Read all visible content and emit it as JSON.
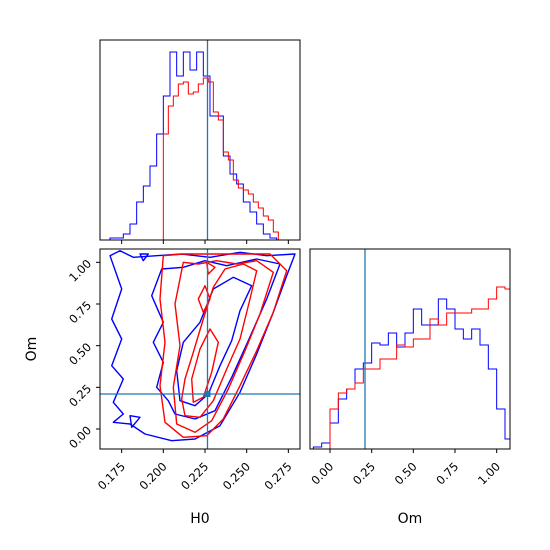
{
  "chart_data": {
    "type": "corner",
    "parameters": [
      "H0",
      "Om"
    ],
    "truths": {
      "H0": 0.2265,
      "Om": 0.21
    },
    "colors": {
      "blue": "#0000ff",
      "red": "#ff0000",
      "truth": "#1f77b4"
    },
    "panels": [
      {
        "id": "hist-H0",
        "type": "histogram",
        "xlim": [
          0.162,
          0.282
        ],
        "xticks": [
          0.175,
          0.2,
          0.225,
          0.25,
          0.275
        ],
        "ylim": [
          0,
          1
        ],
        "series": [
          {
            "color": "blue",
            "bin_start": 0.168,
            "bin_width": 0.004,
            "values": [
              0.01,
              0.01,
              0.03,
              0.08,
              0.19,
              0.27,
              0.37,
              0.53,
              0.72,
              0.94,
              0.82,
              0.94,
              0.85,
              0.94,
              0.82,
              0.62,
              0.62,
              0.42,
              0.33,
              0.28,
              0.19,
              0.14,
              0.08,
              0.03,
              0.01
            ]
          },
          {
            "color": "red",
            "bin_start": 0.2,
            "bin_width": 0.003,
            "values": [
              0.53,
              0.67,
              0.72,
              0.78,
              0.79,
              0.73,
              0.74,
              0.78,
              0.81,
              0.79,
              0.64,
              0.6,
              0.44,
              0.4,
              0.3,
              0.26,
              0.25,
              0.23,
              0.19,
              0.16,
              0.12,
              0.1,
              0.04
            ]
          }
        ]
      },
      {
        "id": "hist-Om",
        "type": "histogram",
        "xlim": [
          -0.12,
          1.08
        ],
        "xticks": [
          0.0,
          0.25,
          0.5,
          0.75,
          1.0
        ],
        "xticklabels": [
          "0.00",
          "0.25",
          "0.50",
          "0.75",
          "1.00"
        ],
        "xlabel": "Om",
        "ylim": [
          0,
          1
        ],
        "series": [
          {
            "color": "blue",
            "bin_start": -0.1,
            "bin_width": 0.05,
            "values": [
              0.01,
              0.03,
              0.13,
              0.25,
              0.3,
              0.4,
              0.43,
              0.53,
              0.52,
              0.58,
              0.51,
              0.58,
              0.7,
              0.62,
              0.62,
              0.75,
              0.7,
              0.6,
              0.55,
              0.6,
              0.52,
              0.4,
              0.2,
              0.05
            ]
          },
          {
            "color": "red",
            "bin_start": 0.0,
            "bin_width": 0.05,
            "values": [
              0.2,
              0.28,
              0.3,
              0.33,
              0.4,
              0.4,
              0.45,
              0.45,
              0.52,
              0.51,
              0.55,
              0.55,
              0.65,
              0.62,
              0.68,
              0.68,
              0.68,
              0.7,
              0.7,
              0.75,
              0.81,
              0.8
            ]
          }
        ]
      },
      {
        "id": "contour-H0-Om",
        "type": "contour",
        "xlim": [
          0.162,
          0.282
        ],
        "ylim": [
          -0.12,
          1.08
        ],
        "xticks": [
          0.175,
          0.2,
          0.225,
          0.25,
          0.275
        ],
        "xticklabels": [
          "0.175",
          "0.200",
          "0.225",
          "0.250",
          "0.275"
        ],
        "yticks": [
          0.0,
          0.25,
          0.5,
          0.75,
          1.0
        ],
        "yticklabels": [
          "0.00",
          "0.25",
          "0.50",
          "0.75",
          "1.00"
        ],
        "xlabel": "H0",
        "ylabel": "Om",
        "series": [
          {
            "color": "blue",
            "contours": [
              [
                [
                  0.189,
                  -0.03
                ],
                [
                  0.205,
                  -0.07
                ],
                [
                  0.219,
                  -0.06
                ],
                [
                  0.234,
                  0.02
                ],
                [
                  0.246,
                  0.22
                ],
                [
                  0.256,
                  0.45
                ],
                [
                  0.266,
                  0.7
                ],
                [
                  0.274,
                  0.92
                ],
                [
                  0.279,
                  1.05
                ],
                [
                  0.262,
                  1.04
                ],
                [
                  0.246,
                  1.06
                ],
                [
                  0.228,
                  1.03
                ],
                [
                  0.211,
                  1.05
                ],
                [
                  0.196,
                  1.04
                ],
                [
                  0.182,
                  1.03
                ],
                [
                  0.174,
                  1.07
                ],
                [
                  0.168,
                  1.04
                ],
                [
                  0.175,
                  0.84
                ],
                [
                  0.169,
                  0.66
                ],
                [
                  0.175,
                  0.54
                ],
                [
                  0.169,
                  0.38
                ],
                [
                  0.176,
                  0.3
                ],
                [
                  0.17,
                  0.16
                ],
                [
                  0.176,
                  0.09
                ],
                [
                  0.17,
                  0.04
                ],
                [
                  0.18,
                  0.03
                ],
                [
                  0.189,
                  -0.03
                ]
              ],
              [
                [
                  0.207,
                  0.09
                ],
                [
                  0.219,
                  0.06
                ],
                [
                  0.231,
                  0.11
                ],
                [
                  0.241,
                  0.31
                ],
                [
                  0.251,
                  0.53
                ],
                [
                  0.262,
                  0.78
                ],
                [
                  0.27,
                  0.99
                ],
                [
                  0.256,
                  1.02
                ],
                [
                  0.238,
                  0.98
                ],
                [
                  0.225,
                  1.01
                ],
                [
                  0.212,
                  0.97
                ],
                [
                  0.199,
                  0.96
                ],
                [
                  0.193,
                  0.8
                ],
                [
                  0.2,
                  0.64
                ],
                [
                  0.194,
                  0.52
                ],
                [
                  0.2,
                  0.4
                ],
                [
                  0.196,
                  0.25
                ],
                [
                  0.203,
                  0.17
                ],
                [
                  0.207,
                  0.09
                ]
              ],
              [
                [
                  0.21,
                  0.17
                ],
                [
                  0.219,
                  0.14
                ],
                [
                  0.227,
                  0.21
                ],
                [
                  0.234,
                  0.38
                ],
                [
                  0.241,
                  0.53
                ],
                [
                  0.246,
                  0.71
                ],
                [
                  0.253,
                  0.86
                ],
                [
                  0.242,
                  0.91
                ],
                [
                  0.23,
                  0.84
                ],
                [
                  0.222,
                  0.64
                ],
                [
                  0.212,
                  0.52
                ],
                [
                  0.208,
                  0.35
                ],
                [
                  0.21,
                  0.17
                ]
              ],
              [
                [
                  0.181,
                  0.01
                ],
                [
                  0.186,
                  0.07
                ],
                [
                  0.18,
                  0.08
                ],
                [
                  0.181,
                  0.01
                ]
              ],
              [
                [
                  0.188,
                  1.01
                ],
                [
                  0.191,
                  1.05
                ],
                [
                  0.186,
                  1.05
                ],
                [
                  0.188,
                  1.01
                ]
              ]
            ]
          },
          {
            "color": "red",
            "contours": [
              [
                [
                  0.201,
                  0.04
                ],
                [
                  0.212,
                  -0.05
                ],
                [
                  0.226,
                  -0.04
                ],
                [
                  0.236,
                  0.06
                ],
                [
                  0.246,
                  0.26
                ],
                [
                  0.256,
                  0.47
                ],
                [
                  0.266,
                  0.7
                ],
                [
                  0.274,
                  0.95
                ],
                [
                  0.264,
                  1.05
                ],
                [
                  0.246,
                  1.05
                ],
                [
                  0.228,
                  1.05
                ],
                [
                  0.212,
                  1.05
                ],
                [
                  0.2,
                  1.04
                ],
                [
                  0.198,
                  0.78
                ],
                [
                  0.201,
                  0.52
                ],
                [
                  0.198,
                  0.26
                ],
                [
                  0.201,
                  0.04
                ]
              ],
              [
                [
                  0.208,
                  0.03
                ],
                [
                  0.219,
                  -0.02
                ],
                [
                  0.229,
                  0.05
                ],
                [
                  0.239,
                  0.24
                ],
                [
                  0.249,
                  0.47
                ],
                [
                  0.258,
                  0.69
                ],
                [
                  0.266,
                  0.94
                ],
                [
                  0.256,
                  1.01
                ],
                [
                  0.244,
                  0.99
                ],
                [
                  0.232,
                  1.01
                ],
                [
                  0.221,
                  0.99
                ],
                [
                  0.212,
                  1.0
                ],
                [
                  0.207,
                  0.75
                ],
                [
                  0.21,
                  0.5
                ],
                [
                  0.206,
                  0.25
                ],
                [
                  0.208,
                  0.03
                ]
              ],
              [
                [
                  0.213,
                  0.08
                ],
                [
                  0.222,
                  0.07
                ],
                [
                  0.23,
                  0.17
                ],
                [
                  0.238,
                  0.36
                ],
                [
                  0.246,
                  0.54
                ],
                [
                  0.252,
                  0.78
                ],
                [
                  0.256,
                  0.95
                ],
                [
                  0.248,
                  0.99
                ],
                [
                  0.237,
                  0.96
                ],
                [
                  0.23,
                  0.85
                ],
                [
                  0.224,
                  0.66
                ],
                [
                  0.218,
                  0.46
                ],
                [
                  0.213,
                  0.3
                ],
                [
                  0.211,
                  0.18
                ],
                [
                  0.213,
                  0.08
                ]
              ],
              [
                [
                  0.218,
                  0.16
                ],
                [
                  0.224,
                  0.19
                ],
                [
                  0.229,
                  0.34
                ],
                [
                  0.233,
                  0.52
                ],
                [
                  0.228,
                  0.6
                ],
                [
                  0.222,
                  0.48
                ],
                [
                  0.217,
                  0.3
                ],
                [
                  0.218,
                  0.16
                ]
              ],
              [
                [
                  0.224,
                  0.7
                ],
                [
                  0.228,
                  0.78
                ],
                [
                  0.225,
                  0.86
                ],
                [
                  0.221,
                  0.78
                ],
                [
                  0.224,
                  0.7
                ]
              ],
              [
                [
                  0.227,
                  0.93
                ],
                [
                  0.231,
                  0.97
                ],
                [
                  0.226,
                  1.0
                ],
                [
                  0.227,
                  0.93
                ]
              ]
            ]
          }
        ]
      }
    ]
  }
}
